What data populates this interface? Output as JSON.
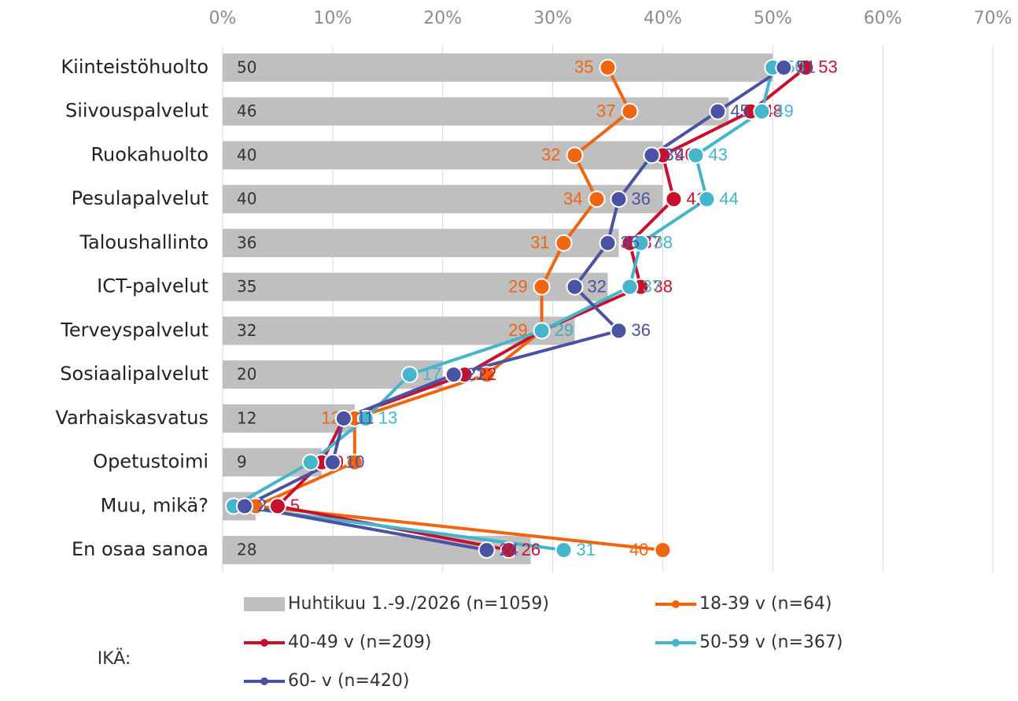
{
  "chart_data": {
    "type": "bar",
    "orientation": "horizontal",
    "categories": [
      "Kiinteistöhuolto",
      "Siivouspalvelut",
      "Ruokahuolto",
      "Pesulapalvelut",
      "Taloushallinto",
      "ICT-palvelut",
      "Terveyspalvelut",
      "Sosiaalipalvelut",
      "Varhaiskasvatus",
      "Opetustoimi",
      "Muu, mikä?",
      "En osaa sanoa"
    ],
    "series": [
      {
        "name": "Huhtikuu 1.-9./2026 (n=1059)",
        "type": "bar",
        "color": "#bfbfbf",
        "values": [
          50,
          46,
          40,
          40,
          36,
          35,
          32,
          20,
          12,
          9,
          3,
          28
        ]
      },
      {
        "name": "18-39 v (n=64)",
        "type": "line",
        "color": "#f0650f",
        "values": [
          35,
          37,
          32,
          34,
          31,
          29,
          29,
          24,
          12,
          12,
          3,
          40
        ]
      },
      {
        "name": "40-49 v (n=209)",
        "type": "line",
        "color": "#c8102e",
        "values": [
          53,
          48,
          40,
          41,
          37,
          38,
          29,
          22,
          11,
          9,
          5,
          26
        ]
      },
      {
        "name": "50-59 v (n=367)",
        "type": "line",
        "color": "#45b5cc",
        "values": [
          50,
          49,
          43,
          44,
          38,
          37,
          29,
          17,
          13,
          8,
          1,
          31
        ]
      },
      {
        "name": "60- v (n=420)",
        "type": "line",
        "color": "#4a53a3",
        "values": [
          51,
          45,
          39,
          36,
          35,
          32,
          36,
          21,
          11,
          10,
          2,
          24
        ]
      }
    ],
    "xlim": [
      0,
      70
    ],
    "xticks": [
      {
        "value": 0,
        "label": "0%"
      },
      {
        "value": 10,
        "label": "10%"
      },
      {
        "value": 20,
        "label": "20%"
      },
      {
        "value": 30,
        "label": "30%"
      },
      {
        "value": 40,
        "label": "40%"
      },
      {
        "value": 50,
        "label": "50%"
      },
      {
        "value": 60,
        "label": "60%"
      },
      {
        "value": 70,
        "label": "70%"
      }
    ],
    "grid": true,
    "legend": "bottom",
    "annotation": "IKÄ:"
  }
}
